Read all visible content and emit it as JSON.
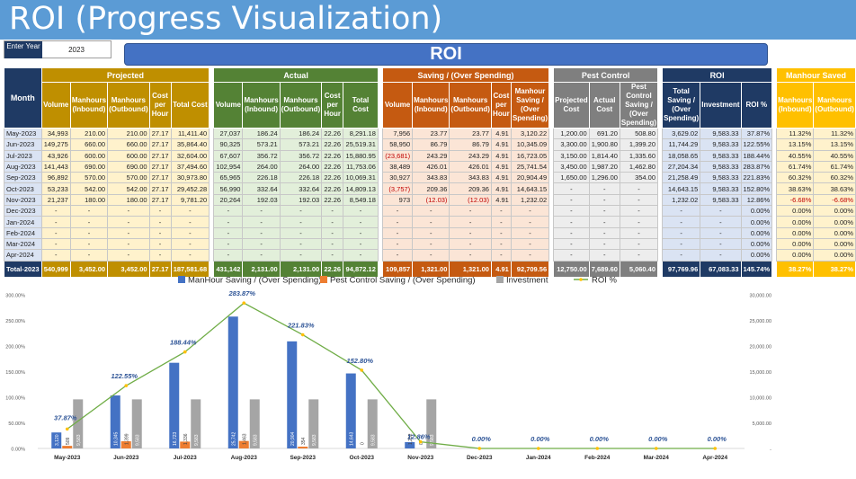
{
  "title": "ROI (Progress Visualization)",
  "year_box": {
    "label": "Enter Year",
    "value": "2023"
  },
  "banner": "ROI",
  "groups": {
    "month": "Month",
    "projected": "Projected",
    "actual": "Actual",
    "saving": "Saving / (Over Spending)",
    "pest": "Pest Control",
    "roi": "ROI",
    "manhour": "Manhour Saved"
  },
  "subheaders": {
    "projected": [
      "Volume",
      "Manhours (Inbound)",
      "Manhours (Outbound)",
      "Cost per Hour",
      "Total Cost"
    ],
    "actual": [
      "Volume",
      "Manhours (Inbound)",
      "Manhours (Outbound)",
      "Cost per Hour",
      "Total Cost"
    ],
    "saving": [
      "Volume",
      "Manhours (Inbound)",
      "Manhours (Outbound)",
      "Cost per Hour",
      "Manhour Saving / (Over Spending)"
    ],
    "pest": [
      "Projected Cost",
      "Actual Cost",
      "Pest Control Saving / (Over Spending)"
    ],
    "roi": [
      "Total Saving / (Over Spending)",
      "Investment",
      "ROI %"
    ],
    "manhour": [
      "Manhours (Inbound)",
      "Manhours (Outbound)"
    ]
  },
  "rows": [
    {
      "month": "May-2023",
      "p": [
        "34,993",
        "210.00",
        "210.00",
        "27.17",
        "11,411.40"
      ],
      "a": [
        "27,037",
        "186.24",
        "186.24",
        "22.26",
        "8,291.18"
      ],
      "s": [
        "7,956",
        "23.77",
        "23.77",
        "4.91",
        "3,120.22"
      ],
      "pc": [
        "1,200.00",
        "691.20",
        "508.80"
      ],
      "r": [
        "3,629.02",
        "9,583.33",
        "37.87%"
      ],
      "m": [
        "11.32%",
        "11.32%"
      ]
    },
    {
      "month": "Jun-2023",
      "p": [
        "149,275",
        "660.00",
        "660.00",
        "27.17",
        "35,864.40"
      ],
      "a": [
        "90,325",
        "573.21",
        "573.21",
        "22.26",
        "25,519.31"
      ],
      "s": [
        "58,950",
        "86.79",
        "86.79",
        "4.91",
        "10,345.09"
      ],
      "pc": [
        "3,300.00",
        "1,900.80",
        "1,399.20"
      ],
      "r": [
        "11,744.29",
        "9,583.33",
        "122.55%"
      ],
      "m": [
        "13.15%",
        "13.15%"
      ]
    },
    {
      "month": "Jul-2023",
      "p": [
        "43,926",
        "600.00",
        "600.00",
        "27.17",
        "32,604.00"
      ],
      "a": [
        "67,607",
        "356.72",
        "356.72",
        "22.26",
        "15,880.95"
      ],
      "s": [
        "(23,681)",
        "243.29",
        "243.29",
        "4.91",
        "16,723.05"
      ],
      "pc": [
        "3,150.00",
        "1,814.40",
        "1,335.60"
      ],
      "r": [
        "18,058.65",
        "9,583.33",
        "188.44%"
      ],
      "m": [
        "40.55%",
        "40.55%"
      ]
    },
    {
      "month": "Aug-2023",
      "p": [
        "141,443",
        "690.00",
        "690.00",
        "27.17",
        "37,494.60"
      ],
      "a": [
        "102,954",
        "264.00",
        "264.00",
        "22.26",
        "11,753.06"
      ],
      "s": [
        "38,489",
        "426.01",
        "426.01",
        "4.91",
        "25,741.54"
      ],
      "pc": [
        "3,450.00",
        "1,987.20",
        "1,462.80"
      ],
      "r": [
        "27,204.34",
        "9,583.33",
        "283.87%"
      ],
      "m": [
        "61.74%",
        "61.74%"
      ]
    },
    {
      "month": "Sep-2023",
      "p": [
        "96,892",
        "570.00",
        "570.00",
        "27.17",
        "30,973.80"
      ],
      "a": [
        "65,965",
        "226.18",
        "226.18",
        "22.26",
        "10,069.31"
      ],
      "s": [
        "30,927",
        "343.83",
        "343.83",
        "4.91",
        "20,904.49"
      ],
      "pc": [
        "1,650.00",
        "1,296.00",
        "354.00"
      ],
      "r": [
        "21,258.49",
        "9,583.33",
        "221.83%"
      ],
      "m": [
        "60.32%",
        "60.32%"
      ]
    },
    {
      "month": "Oct-2023",
      "p": [
        "53,233",
        "542.00",
        "542.00",
        "27.17",
        "29,452.28"
      ],
      "a": [
        "56,990",
        "332.64",
        "332.64",
        "22.26",
        "14,809.13"
      ],
      "s": [
        "(3,757)",
        "209.36",
        "209.36",
        "4.91",
        "14,643.15"
      ],
      "pc": [
        "-",
        "-",
        "-"
      ],
      "r": [
        "14,643.15",
        "9,583.33",
        "152.80%"
      ],
      "m": [
        "38.63%",
        "38.63%"
      ]
    },
    {
      "month": "Nov-2023",
      "p": [
        "21,237",
        "180.00",
        "180.00",
        "27.17",
        "9,781.20"
      ],
      "a": [
        "20,264",
        "192.03",
        "192.03",
        "22.26",
        "8,549.18"
      ],
      "s": [
        "973",
        "(12.03)",
        "(12.03)",
        "4.91",
        "1,232.02"
      ],
      "pc": [
        "-",
        "-",
        "-"
      ],
      "r": [
        "1,232.02",
        "9,583.33",
        "12.86%"
      ],
      "m": [
        "-6.68%",
        "-6.68%"
      ]
    },
    {
      "month": "Dec-2023",
      "p": [
        "-",
        "-",
        "-",
        "-",
        "-"
      ],
      "a": [
        "-",
        "-",
        "-",
        "-",
        "-"
      ],
      "s": [
        "-",
        "-",
        "-",
        "-",
        "-"
      ],
      "pc": [
        "-",
        "-",
        "-"
      ],
      "r": [
        "-",
        "-",
        "0.00%"
      ],
      "m": [
        "0.00%",
        "0.00%"
      ]
    },
    {
      "month": "Jan-2024",
      "p": [
        "-",
        "-",
        "-",
        "-",
        "-"
      ],
      "a": [
        "-",
        "-",
        "-",
        "-",
        "-"
      ],
      "s": [
        "-",
        "-",
        "-",
        "-",
        "-"
      ],
      "pc": [
        "-",
        "-",
        "-"
      ],
      "r": [
        "-",
        "-",
        "0.00%"
      ],
      "m": [
        "0.00%",
        "0.00%"
      ]
    },
    {
      "month": "Feb-2024",
      "p": [
        "-",
        "-",
        "-",
        "-",
        "-"
      ],
      "a": [
        "-",
        "-",
        "-",
        "-",
        "-"
      ],
      "s": [
        "-",
        "-",
        "-",
        "-",
        "-"
      ],
      "pc": [
        "-",
        "-",
        "-"
      ],
      "r": [
        "-",
        "-",
        "0.00%"
      ],
      "m": [
        "0.00%",
        "0.00%"
      ]
    },
    {
      "month": "Mar-2024",
      "p": [
        "-",
        "-",
        "-",
        "-",
        "-"
      ],
      "a": [
        "-",
        "-",
        "-",
        "-",
        "-"
      ],
      "s": [
        "-",
        "-",
        "-",
        "-",
        "-"
      ],
      "pc": [
        "-",
        "-",
        "-"
      ],
      "r": [
        "-",
        "-",
        "0.00%"
      ],
      "m": [
        "0.00%",
        "0.00%"
      ]
    },
    {
      "month": "Apr-2024",
      "p": [
        "-",
        "-",
        "-",
        "-",
        "-"
      ],
      "a": [
        "-",
        "-",
        "-",
        "-",
        "-"
      ],
      "s": [
        "-",
        "-",
        "-",
        "-",
        "-"
      ],
      "pc": [
        "-",
        "-",
        "-"
      ],
      "r": [
        "-",
        "-",
        "0.00%"
      ],
      "m": [
        "0.00%",
        "0.00%"
      ]
    }
  ],
  "total": {
    "month": "Total-2023",
    "p": [
      "540,999",
      "3,452.00",
      "3,452.00",
      "27.17",
      "187,581.68"
    ],
    "a": [
      "431,142",
      "2,131.00",
      "2,131.00",
      "22.26",
      "94,872.12"
    ],
    "s": [
      "109,857",
      "1,321.00",
      "1,321.00",
      "4.91",
      "92,709.56"
    ],
    "pc": [
      "12,750.00",
      "7,689.60",
      "5,060.40"
    ],
    "r": [
      "97,769.96",
      "67,083.33",
      "145.74%"
    ],
    "m": [
      "38.27%",
      "38.27%"
    ]
  },
  "colors": {
    "manhour_saving": "#4472c4",
    "pest_saving": "#ed7d31",
    "investment": "#a5a5a5",
    "roi": "#70ad47",
    "roi_marker": "#ffc000"
  },
  "chart_data": {
    "type": "bar",
    "categories": [
      "May-2023",
      "Jun-2023",
      "Jul-2023",
      "Aug-2023",
      "Sep-2023",
      "Oct-2023",
      "Nov-2023",
      "Dec-2023",
      "Jan-2024",
      "Feb-2024",
      "Mar-2024",
      "Apr-2024"
    ],
    "series": [
      {
        "name": "ManHour Saving / (Over Spending)",
        "kind": "bar",
        "axis": "right",
        "values": [
          3120,
          10345,
          16723,
          25742,
          20904,
          14643,
          1232,
          0,
          0,
          0,
          0,
          0
        ],
        "labels": [
          "3,120",
          "10,345",
          "16,723",
          "25,742",
          "20,904",
          "14,643",
          "1,232",
          "",
          "",
          "",
          "",
          ""
        ]
      },
      {
        "name": "Pest Control Saving / (Over Spending)",
        "kind": "bar",
        "axis": "right",
        "values": [
          509,
          1399,
          1336,
          1463,
          354,
          0,
          0,
          0,
          0,
          0,
          0,
          0
        ],
        "labels": [
          "509",
          "1,399",
          "1,336",
          "1,463",
          "354",
          "0",
          "0",
          "",
          "",
          "",
          "",
          ""
        ]
      },
      {
        "name": "Investment",
        "kind": "bar",
        "axis": "right",
        "values": [
          9583,
          9583,
          9583,
          9583,
          9583,
          9583,
          9583,
          0,
          0,
          0,
          0,
          0
        ],
        "labels": [
          "9,583",
          "9,583",
          "9,583",
          "9,583",
          "9,583",
          "9,583",
          "9,583",
          "",
          "",
          "",
          "",
          ""
        ]
      },
      {
        "name": "ROI %",
        "kind": "line",
        "axis": "left",
        "values": [
          37.87,
          122.55,
          188.44,
          283.87,
          221.83,
          152.8,
          12.86,
          0,
          0,
          0,
          0,
          0
        ],
        "labels": [
          "37.87%",
          "122.55%",
          "188.44%",
          "283.87%",
          "221.83%",
          "152.80%",
          "12.86%",
          "0.00%",
          "0.00%",
          "0.00%",
          "0.00%",
          "0.00%"
        ]
      }
    ],
    "left_axis": {
      "ticks": [
        0,
        50,
        100,
        150,
        200,
        250,
        300
      ],
      "labels": [
        "0.00%",
        "50.00%",
        "100.00%",
        "150.00%",
        "200.00%",
        "250.00%",
        "300.00%"
      ],
      "ylim": [
        0,
        300
      ]
    },
    "right_axis": {
      "ticks": [
        0,
        5000,
        10000,
        15000,
        20000,
        25000,
        30000
      ],
      "labels": [
        "-",
        "5,000.00",
        "10,000.00",
        "15,000.00",
        "20,000.00",
        "25,000.00",
        "30,000.00"
      ],
      "ylim": [
        0,
        30000
      ]
    },
    "legend": "top",
    "grid": false
  }
}
